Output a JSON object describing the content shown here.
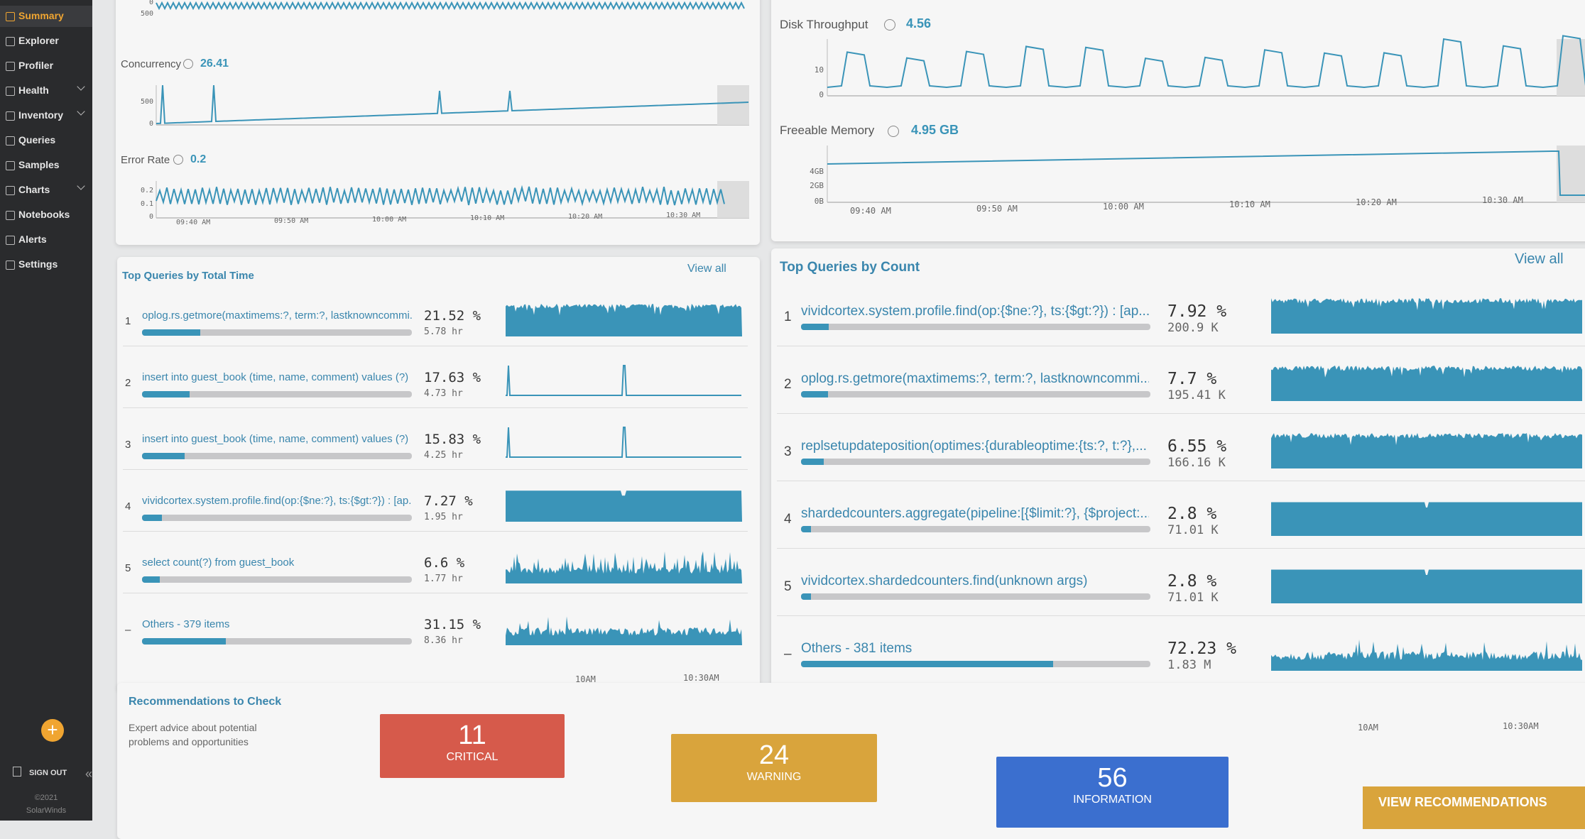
{
  "sidebar": {
    "items": [
      "Summary",
      "Explorer",
      "Profiler",
      "Health",
      "Inventory",
      "Queries",
      "Samples",
      "Charts",
      "Notebooks",
      "Alerts",
      "Settings"
    ],
    "sign_out": "SIGN OUT",
    "copyright": "©2021",
    "brand": "SolarWinds"
  },
  "overview_left": {
    "top_chart_ticks": [
      500,
      0
    ],
    "charts": [
      {
        "label": "Concurrency",
        "value": "26.41",
        "ticks": [
          500,
          0
        ]
      },
      {
        "label": "Error Rate",
        "value": "0.2",
        "ticks": [
          0.2,
          0.1,
          0
        ]
      }
    ],
    "time_axis": [
      "09:40 AM",
      "09:50 AM",
      "10:00 AM",
      "10:10 AM",
      "10:20 AM",
      "10:30 AM"
    ]
  },
  "overview_right": {
    "charts": [
      {
        "label": "Disk Throughput",
        "value": "4.56",
        "ticks": [
          10,
          0
        ]
      },
      {
        "label": "Freeable Memory",
        "value": "4.95 GB",
        "ticks": [
          "4GB",
          "2GB",
          "0B"
        ]
      }
    ],
    "time_axis": [
      "09:40 AM",
      "09:50 AM",
      "10:00 AM",
      "10:10 AM",
      "10:20 AM",
      "10:30 AM"
    ]
  },
  "queries_by_time": {
    "title": "Top Queries by Total Time",
    "view_all": "View all",
    "rows": [
      {
        "rank": "1",
        "query": "oplog.rs.getmore(maxtimems:?, term:?, lastknowncommi...",
        "share": 21.52,
        "share_label": "21.52 %",
        "total": "5.78 hr"
      },
      {
        "rank": "2",
        "query": "insert into guest_book (time, name, comment) values (?)",
        "share": 17.63,
        "share_label": "17.63 %",
        "total": "4.73 hr"
      },
      {
        "rank": "3",
        "query": "insert into guest_book (time, name, comment) values (?)",
        "share": 15.83,
        "share_label": "15.83 %",
        "total": "4.25 hr"
      },
      {
        "rank": "4",
        "query": "vividcortex.system.profile.find(op:{$ne:?}, ts:{$gt:?}) : [ap...",
        "share": 7.27,
        "share_label": "7.27 %",
        "total": "1.95 hr"
      },
      {
        "rank": "5",
        "query": "select count(?) from guest_book",
        "share": 6.6,
        "share_label": "6.6 %",
        "total": "1.77 hr"
      },
      {
        "rank": "–",
        "query": "Others - 379 items",
        "share": 31.15,
        "share_label": "31.15 %",
        "total": "8.36 hr"
      }
    ],
    "time_axis": [
      "10AM",
      "10:30AM"
    ]
  },
  "queries_by_count": {
    "title": "Top Queries by Count",
    "view_all": "View all",
    "rows": [
      {
        "rank": "1",
        "query": "vividcortex.system.profile.find(op:{$ne:?}, ts:{$gt:?}) : [ap...",
        "share": 7.92,
        "share_label": "7.92 %",
        "total": "200.9 K"
      },
      {
        "rank": "2",
        "query": "oplog.rs.getmore(maxtimems:?, term:?, lastknowncommi...",
        "share": 7.7,
        "share_label": "7.7 %",
        "total": "195.41 K"
      },
      {
        "rank": "3",
        "query": "replsetupdateposition(optimes:{durableoptime:{ts:?, t:?},...",
        "share": 6.55,
        "share_label": "6.55 %",
        "total": "166.16 K"
      },
      {
        "rank": "4",
        "query": "shardedcounters.aggregate(pipeline:[{$limit:?}, {$project:...",
        "share": 2.8,
        "share_label": "2.8 %",
        "total": "71.01 K"
      },
      {
        "rank": "5",
        "query": "vividcortex.shardedcounters.find(unknown args)",
        "share": 2.8,
        "share_label": "2.8 %",
        "total": "71.01 K"
      },
      {
        "rank": "–",
        "query": "Others - 381 items",
        "share": 72.23,
        "share_label": "72.23 %",
        "total": "1.83 M"
      }
    ],
    "time_axis": [
      "10AM",
      "10:30AM"
    ]
  },
  "recommendations": {
    "title": "Recommendations to Check",
    "description": "Expert advice about potential problems and opportunities",
    "cards": [
      {
        "count": 11,
        "label": "CRITICAL"
      },
      {
        "count": 24,
        "label": "WARNING"
      },
      {
        "count": 56,
        "label": "INFORMATION"
      }
    ],
    "button": "VIEW RECOMMENDATIONS"
  }
}
